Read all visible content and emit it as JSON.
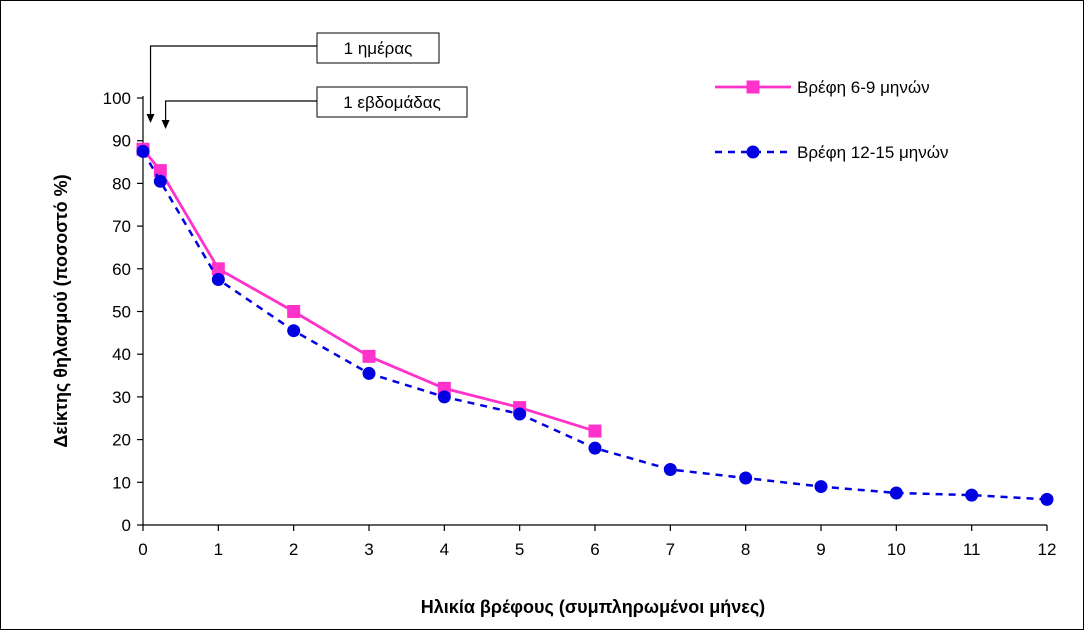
{
  "chart_data": {
    "type": "line",
    "xlabel": "Ηλικία βρέφους (συμπληρωμένοι μήνες)",
    "ylabel": "Δείκτης θηλασμού (ποσοστό %)",
    "xlim": [
      0,
      12
    ],
    "ylim": [
      0,
      100
    ],
    "x_ticks": [
      "0",
      "1",
      "2",
      "3",
      "4",
      "5",
      "6",
      "7",
      "8",
      "9",
      "10",
      "11",
      "12"
    ],
    "y_ticks": [
      "0",
      "10",
      "20",
      "30",
      "40",
      "50",
      "60",
      "70",
      "80",
      "90",
      "100"
    ],
    "grid": false,
    "legend_position": "top-right",
    "series": [
      {
        "name": "Βρέφη 6-9 μηνών",
        "color": "#ff33cc",
        "line_style": "solid",
        "marker": "square",
        "x": [
          0,
          0.23,
          1,
          2,
          3,
          4,
          5,
          6
        ],
        "y": [
          88,
          83,
          60,
          50,
          39.5,
          32,
          27.5,
          22
        ]
      },
      {
        "name": "Βρέφη 12-15 μηνών",
        "color": "#0000e0",
        "line_style": "dashed",
        "marker": "circle",
        "x": [
          0,
          0.23,
          1,
          2,
          3,
          4,
          5,
          6,
          7,
          8,
          9,
          10,
          11,
          12
        ],
        "y": [
          87.5,
          80.5,
          57.5,
          45.5,
          35.5,
          30,
          26,
          18,
          13,
          11,
          9,
          7.5,
          7,
          6
        ]
      }
    ],
    "annotations": [
      {
        "text": "1 ημέρας",
        "x": 0.1
      },
      {
        "text": "1 εβδομάδας",
        "x": 0.3
      }
    ]
  }
}
